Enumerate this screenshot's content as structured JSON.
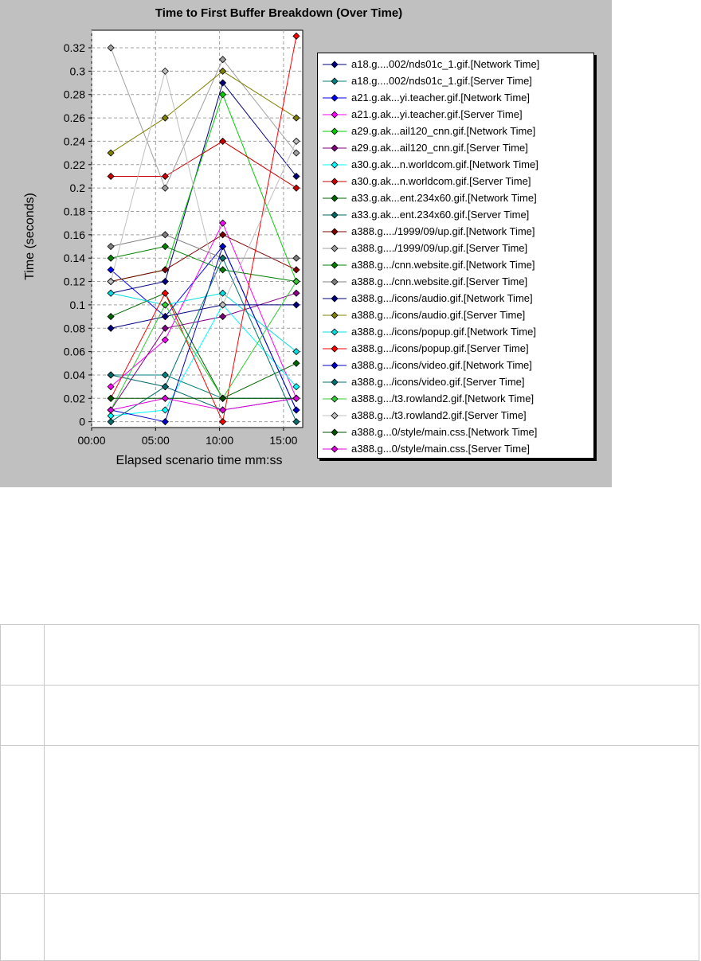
{
  "chart_data": {
    "type": "line",
    "title": "Time to First Buffer Breakdown (Over Time)",
    "xlabel": "Elapsed scenario time mm:ss",
    "ylabel": "Time (seconds)",
    "x_ticks": [
      "00:00",
      "05:00",
      "10:00",
      "15:00"
    ],
    "y_ticks": [
      "0",
      "0.02",
      "0.04",
      "0.06",
      "0.08",
      "0.1",
      "0.12",
      "0.14",
      "0.16",
      "0.18",
      "0.2",
      "0.22",
      "0.24",
      "0.26",
      "0.28",
      "0.3",
      "0.32"
    ],
    "xlim": [
      0,
      16.5
    ],
    "ylim": [
      -0.005,
      0.335
    ],
    "grid": true,
    "legend_position": "right",
    "x": [
      "01:30",
      "05:45",
      "10:15",
      "16:00"
    ],
    "series": [
      {
        "name": "a18.g....002/nds01c_1.gif.[Network Time]",
        "color": "#000080",
        "values": [
          0.11,
          0.12,
          0.29,
          0.21
        ]
      },
      {
        "name": "a18.g....002/nds01c_1.gif.[Server Time]",
        "color": "#008080",
        "values": [
          0.04,
          0.04,
          0.02,
          0.02
        ]
      },
      {
        "name": "a21.g.ak...yi.teacher.gif.[Network Time]",
        "color": "#0000ff",
        "values": [
          0.13,
          0.09,
          0.15,
          0.01
        ]
      },
      {
        "name": "a21.g.ak...yi.teacher.gif.[Server Time]",
        "color": "#ff00ff",
        "values": [
          0.03,
          0.07,
          0.17,
          0.02
        ]
      },
      {
        "name": "a29.g.ak...ail120_cnn.gif.[Network Time]",
        "color": "#00cc00",
        "values": [
          0.12,
          0.13,
          0.28,
          0.12
        ]
      },
      {
        "name": "a29.g.ak...ail120_cnn.gif.[Server Time]",
        "color": "#800080",
        "values": [
          0.01,
          0.08,
          0.09,
          0.11
        ]
      },
      {
        "name": "a30.g.ak...n.worldcom.gif.[Network Time]",
        "color": "#00ffff",
        "values": [
          0.005,
          0.01,
          0.1,
          0.03
        ]
      },
      {
        "name": "a30.g.ak...n.worldcom.gif.[Server Time]",
        "color": "#cc0000",
        "values": [
          0.21,
          0.21,
          0.24,
          0.2
        ]
      },
      {
        "name": "a33.g.ak...ent.234x60.gif.[Network Time]",
        "color": "#006600",
        "values": [
          0.09,
          0.11,
          0.02,
          0.05
        ]
      },
      {
        "name": "a33.g.ak...ent.234x60.gif.[Server Time]",
        "color": "#006666",
        "values": [
          0.04,
          0.03,
          0.01,
          0.02
        ]
      },
      {
        "name": "a388.g..../1999/09/up.gif.[Network Time]",
        "color": "#800000",
        "values": [
          0.12,
          0.13,
          0.16,
          0.13
        ]
      },
      {
        "name": "a388.g..../1999/09/up.gif.[Server Time]",
        "color": "#a0a0a0",
        "values": [
          0.32,
          0.2,
          0.31,
          0.23
        ]
      },
      {
        "name": "a388.g.../cnn.website.gif.[Network Time]",
        "color": "#008000",
        "values": [
          0.14,
          0.15,
          0.13,
          0.12
        ]
      },
      {
        "name": "a388.g.../cnn.website.gif.[Server Time]",
        "color": "#808080",
        "values": [
          0.15,
          0.16,
          0.14,
          0.14
        ]
      },
      {
        "name": "a388.g.../icons/audio.gif.[Network Time]",
        "color": "#000080",
        "values": [
          0.08,
          0.09,
          0.1,
          0.1
        ]
      },
      {
        "name": "a388.g.../icons/audio.gif.[Server Time]",
        "color": "#808000",
        "values": [
          0.23,
          0.26,
          0.3,
          0.26
        ]
      },
      {
        "name": "a388.g.../icons/popup.gif.[Network Time]",
        "color": "#00e0e0",
        "values": [
          0.11,
          0.1,
          0.11,
          0.06
        ]
      },
      {
        "name": "a388.g.../icons/popup.gif.[Server Time]",
        "color": "#ff0000",
        "values": [
          0.02,
          0.11,
          0.0,
          0.33
        ]
      },
      {
        "name": "a388.g.../icons/video.gif.[Network Time]",
        "color": "#0000cc",
        "values": [
          0.01,
          0.0,
          0.15,
          0.01
        ]
      },
      {
        "name": "a388.g.../icons/video.gif.[Server Time]",
        "color": "#007070",
        "values": [
          0.0,
          0.03,
          0.14,
          0.0
        ]
      },
      {
        "name": "a388.g.../t3.rowland2.gif.[Network Time]",
        "color": "#33cc33",
        "values": [
          0.01,
          0.1,
          0.02,
          0.12
        ]
      },
      {
        "name": "a388.g.../t3.rowland2.gif.[Server Time]",
        "color": "#c0c0c0",
        "values": [
          0.12,
          0.3,
          0.1,
          0.24
        ]
      },
      {
        "name": "a388.g...0/style/main.css.[Network Time]",
        "color": "#005000",
        "values": [
          0.02,
          0.02,
          0.02,
          0.02
        ]
      },
      {
        "name": "a388.g...0/style/main.css.[Server Time]",
        "color": "#e000e0",
        "values": [
          0.01,
          0.02,
          0.01,
          0.02
        ]
      }
    ]
  },
  "table": {
    "rows": [
      {
        "num": "",
        "text": ""
      },
      {
        "num": "",
        "text": ""
      },
      {
        "num": "",
        "text": ""
      },
      {
        "num": "",
        "text": ""
      }
    ]
  }
}
